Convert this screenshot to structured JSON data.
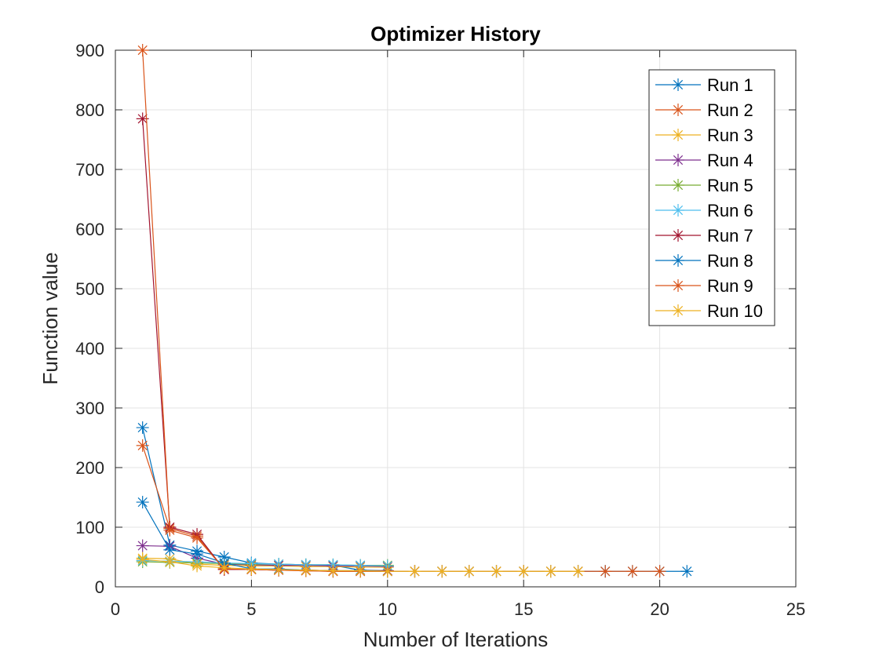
{
  "chart_data": {
    "type": "line",
    "title": "Optimizer History",
    "xlabel": "Number of Iterations",
    "ylabel": "Function value",
    "xlim": [
      0,
      25
    ],
    "ylim": [
      0,
      900
    ],
    "xticks": [
      0,
      5,
      10,
      15,
      20,
      25
    ],
    "yticks": [
      0,
      100,
      200,
      300,
      400,
      500,
      600,
      700,
      800,
      900
    ],
    "grid": true,
    "legend": "top-right",
    "marker": "asterisk",
    "series": [
      {
        "name": "Run 1",
        "color": "#0072BD",
        "x": [
          1,
          2,
          3,
          4,
          5,
          6,
          7,
          8,
          9,
          10
        ],
        "y": [
          267,
          70,
          60,
          50,
          40,
          38,
          37,
          36,
          28,
          27
        ]
      },
      {
        "name": "Run 2",
        "color": "#D95319",
        "x": [
          1,
          2,
          3,
          4,
          5,
          6,
          7,
          8,
          9,
          10,
          11
        ],
        "y": [
          237,
          98,
          85,
          30,
          29,
          28,
          27,
          26,
          26,
          26,
          26
        ]
      },
      {
        "name": "Run 3",
        "color": "#EDB120",
        "x": [
          1,
          2,
          3,
          4,
          5,
          6,
          7,
          8,
          9,
          10
        ],
        "y": [
          48,
          47,
          38,
          36,
          35,
          35,
          34,
          34,
          33,
          33
        ]
      },
      {
        "name": "Run 4",
        "color": "#7E2F8E",
        "x": [
          1,
          2,
          3,
          4,
          5,
          6,
          7,
          8,
          9,
          10
        ],
        "y": [
          69,
          68,
          48,
          38,
          37,
          36,
          36,
          35,
          35,
          34
        ]
      },
      {
        "name": "Run 5",
        "color": "#77AC30",
        "x": [
          1,
          2,
          3,
          4,
          5,
          6,
          7,
          8,
          9,
          10
        ],
        "y": [
          42,
          41,
          40,
          39,
          38,
          38,
          37,
          37,
          36,
          36
        ]
      },
      {
        "name": "Run 6",
        "color": "#4DBEEE",
        "x": [
          1,
          2,
          3,
          4,
          5,
          6,
          7,
          8,
          9,
          10
        ],
        "y": [
          44,
          43,
          42,
          40,
          39,
          38,
          37,
          37,
          36,
          35
        ]
      },
      {
        "name": "Run 7",
        "color": "#A2142F",
        "x": [
          1,
          2,
          3,
          4,
          5,
          6,
          7,
          8,
          9,
          10
        ],
        "y": [
          785,
          100,
          88,
          29,
          29,
          28,
          28,
          27,
          27,
          27
        ]
      },
      {
        "name": "Run 8",
        "color": "#0072BD",
        "x": [
          1,
          2,
          3,
          4,
          5,
          6,
          7,
          8,
          9,
          10,
          11,
          12,
          13,
          14,
          15,
          16,
          17,
          18,
          19,
          20,
          21
        ],
        "y": [
          142,
          62,
          55,
          40,
          30,
          30,
          28,
          27,
          27,
          26,
          26,
          26,
          26,
          26,
          26,
          26,
          26,
          26,
          26,
          26,
          26
        ]
      },
      {
        "name": "Run 9",
        "color": "#D95319",
        "x": [
          1,
          2,
          3,
          4,
          5,
          6,
          7,
          8,
          9,
          10,
          11,
          12,
          13,
          14,
          15,
          16,
          17,
          18,
          19,
          20
        ],
        "y": [
          900,
          95,
          82,
          30,
          29,
          28,
          27,
          26,
          26,
          26,
          26,
          26,
          26,
          26,
          26,
          26,
          26,
          26,
          26,
          26
        ]
      },
      {
        "name": "Run 10",
        "color": "#EDB120",
        "x": [
          1,
          2,
          3,
          4,
          5,
          6,
          7,
          8,
          9,
          10,
          11,
          12,
          13,
          14,
          15,
          16,
          17
        ],
        "y": [
          46,
          42,
          35,
          32,
          30,
          29,
          28,
          27,
          27,
          26,
          26,
          26,
          26,
          26,
          26,
          26,
          26
        ]
      }
    ]
  }
}
